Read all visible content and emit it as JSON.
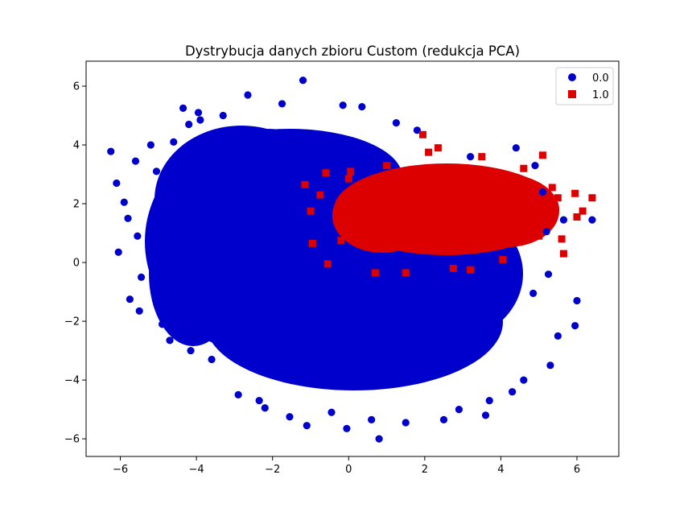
{
  "chart_data": {
    "type": "scatter",
    "title": "Dystrybucja danych zbioru Custom (redukcja PCA)",
    "xlabel": "",
    "ylabel": "",
    "xlim": [
      -6.9,
      7.1
    ],
    "ylim": [
      -6.6,
      6.85
    ],
    "x_ticks": [
      -6,
      -4,
      -2,
      0,
      2,
      4,
      6
    ],
    "y_ticks": [
      -6,
      -4,
      -2,
      0,
      2,
      4,
      6
    ],
    "grid": false,
    "legend_position": "top-right",
    "series": [
      {
        "name": "0.0",
        "marker": "circle",
        "color": "#0000cc",
        "points": [
          [
            -6.25,
            3.78
          ],
          [
            -6.1,
            2.7
          ],
          [
            -5.9,
            2.05
          ],
          [
            -5.8,
            1.5
          ],
          [
            -5.55,
            0.9
          ],
          [
            -5.5,
            -1.65
          ],
          [
            -5.2,
            4.0
          ],
          [
            -5.05,
            3.1
          ],
          [
            -4.9,
            -2.1
          ],
          [
            -4.6,
            4.1
          ],
          [
            -4.35,
            5.25
          ],
          [
            -4.2,
            4.7
          ],
          [
            -4.15,
            -3.0
          ],
          [
            -3.95,
            5.1
          ],
          [
            -3.6,
            -3.3
          ],
          [
            -3.3,
            5.0
          ],
          [
            -3.05,
            4.4
          ],
          [
            -2.9,
            -4.5
          ],
          [
            -2.65,
            5.7
          ],
          [
            -2.35,
            -4.7
          ],
          [
            -1.75,
            5.4
          ],
          [
            -1.55,
            -5.25
          ],
          [
            -1.2,
            6.2
          ],
          [
            -1.1,
            -5.55
          ],
          [
            -0.7,
            4.3
          ],
          [
            -0.45,
            -5.1
          ],
          [
            -0.15,
            5.35
          ],
          [
            -0.05,
            -5.65
          ],
          [
            0.35,
            5.3
          ],
          [
            0.6,
            -5.35
          ],
          [
            0.8,
            -6.0
          ],
          [
            1.25,
            4.75
          ],
          [
            1.8,
            4.5
          ],
          [
            2.5,
            -5.35
          ],
          [
            2.9,
            -5.0
          ],
          [
            3.2,
            3.6
          ],
          [
            3.7,
            -4.7
          ],
          [
            3.6,
            -5.2
          ],
          [
            4.6,
            -4.0
          ],
          [
            4.9,
            3.3
          ],
          [
            5.3,
            -3.5
          ],
          [
            5.2,
            1.05
          ],
          [
            5.5,
            -2.5
          ],
          [
            5.65,
            1.45
          ],
          [
            5.95,
            -2.15
          ],
          [
            6.0,
            -1.3
          ],
          [
            6.4,
            1.45
          ],
          [
            5.25,
            -0.4
          ],
          [
            4.85,
            -1.05
          ],
          [
            5.1,
            2.4
          ],
          [
            -5.75,
            -1.25
          ],
          [
            -5.45,
            -0.5
          ],
          [
            -4.7,
            -2.65
          ],
          [
            -2.2,
            -4.95
          ],
          [
            1.5,
            -5.45
          ],
          [
            4.3,
            -4.4
          ],
          [
            -6.05,
            0.35
          ],
          [
            -5.6,
            3.45
          ],
          [
            -3.9,
            4.85
          ],
          [
            4.4,
            3.9
          ]
        ]
      },
      {
        "name": "1.0",
        "marker": "square",
        "color": "#dd0000",
        "points": [
          [
            -1.15,
            2.65
          ],
          [
            -1.0,
            1.75
          ],
          [
            -0.95,
            0.65
          ],
          [
            -0.6,
            3.05
          ],
          [
            -0.55,
            -0.05
          ],
          [
            0.05,
            3.1
          ],
          [
            0.7,
            -0.35
          ],
          [
            1.5,
            -0.35
          ],
          [
            1.95,
            4.35
          ],
          [
            2.35,
            3.9
          ],
          [
            2.75,
            -0.2
          ],
          [
            3.2,
            -0.25
          ],
          [
            3.5,
            3.6
          ],
          [
            4.05,
            0.1
          ],
          [
            5.1,
            3.65
          ],
          [
            5.35,
            2.55
          ],
          [
            5.5,
            2.2
          ],
          [
            5.65,
            0.3
          ],
          [
            5.95,
            2.35
          ],
          [
            6.15,
            1.75
          ],
          [
            6.4,
            2.2
          ],
          [
            6.0,
            1.55
          ],
          [
            5.6,
            0.8
          ],
          [
            5.0,
            0.9
          ],
          [
            4.6,
            3.2
          ],
          [
            -0.2,
            0.75
          ],
          [
            0.0,
            2.85
          ],
          [
            -0.75,
            2.3
          ],
          [
            1.0,
            3.3
          ],
          [
            2.1,
            3.75
          ]
        ]
      }
    ]
  }
}
